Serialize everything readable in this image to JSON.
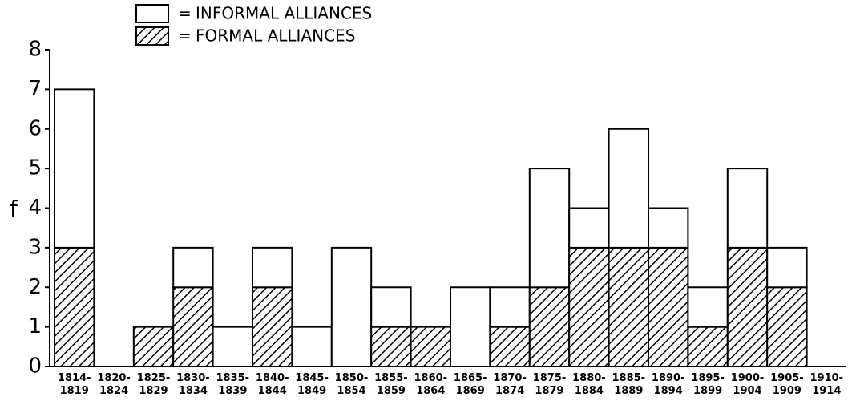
{
  "chart_data": {
    "type": "stacked_bar",
    "y_label": "f",
    "legend_separator": "=",
    "categories": [
      [
        "1814-",
        "1819"
      ],
      [
        "1820-",
        "1824"
      ],
      [
        "1825-",
        "1829"
      ],
      [
        "1830-",
        "1834"
      ],
      [
        "1835-",
        "1839"
      ],
      [
        "1840-",
        "1844"
      ],
      [
        "1845-",
        "1849"
      ],
      [
        "1850-",
        "1854"
      ],
      [
        "1855-",
        "1859"
      ],
      [
        "1860-",
        "1864"
      ],
      [
        "1865-",
        "1869"
      ],
      [
        "1870-",
        "1874"
      ],
      [
        "1875-",
        "1879"
      ],
      [
        "1880-",
        "1884"
      ],
      [
        "1885-",
        "1889"
      ],
      [
        "1890-",
        "1894"
      ],
      [
        "1895-",
        "1899"
      ],
      [
        "1900-",
        "1904"
      ],
      [
        "1905-",
        "1909"
      ],
      [
        "1910-",
        "1914"
      ]
    ],
    "series": [
      {
        "name": "FORMAL ALLIANCES",
        "color": "hatched",
        "values": [
          3,
          0,
          1,
          2,
          0,
          2,
          0,
          0,
          1,
          1,
          0,
          1,
          2,
          3,
          3,
          3,
          1,
          3,
          2,
          0
        ]
      },
      {
        "name": "INFORMAL ALLIANCES",
        "color": "#ffffff",
        "values": [
          4,
          0,
          0,
          1,
          1,
          1,
          1,
          3,
          1,
          0,
          2,
          1,
          3,
          1,
          3,
          1,
          1,
          2,
          1,
          0
        ]
      }
    ],
    "ylim": [
      0,
      8
    ],
    "yticks": [
      0,
      1,
      2,
      3,
      4,
      5,
      6,
      7,
      8
    ]
  }
}
